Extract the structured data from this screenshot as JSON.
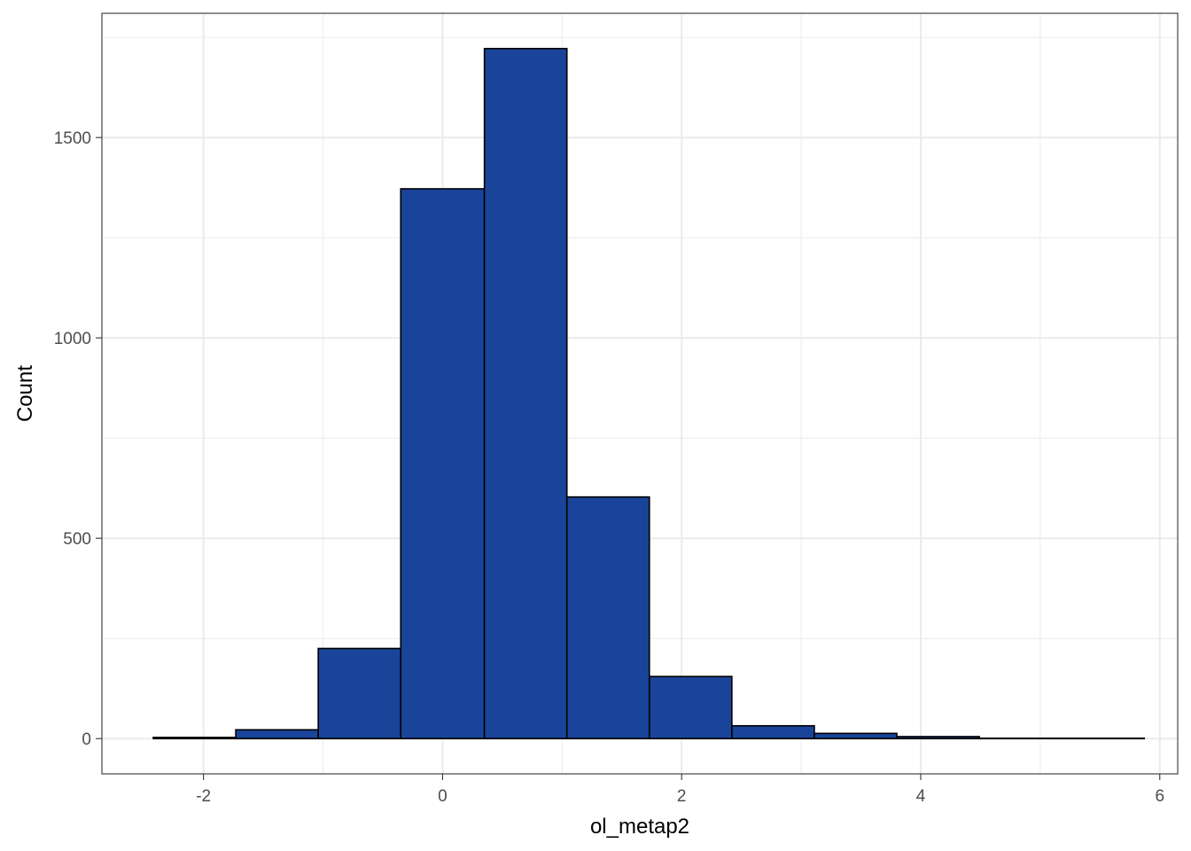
{
  "chart_data": {
    "type": "bar",
    "subtype": "histogram",
    "xlabel": "ol_metap2",
    "ylabel": "Count",
    "xlim": [
      -2.85,
      6.15
    ],
    "ylim": [
      -88,
      1810
    ],
    "x_ticks": [
      -2,
      0,
      2,
      4,
      6
    ],
    "x_tick_labels": [
      "-2",
      "0",
      "2",
      "4",
      "6"
    ],
    "x_minor_ticks": [
      -1,
      1,
      3,
      5
    ],
    "y_ticks": [
      0,
      500,
      1000,
      1500
    ],
    "y_tick_labels": [
      "0",
      "500",
      "1000",
      "1500"
    ],
    "y_minor_ticks": [
      250,
      750,
      1250,
      1750
    ],
    "grid": true,
    "bar_fill": "#1a4499",
    "bar_stroke": "#000000",
    "grid_color": "#ebebeb",
    "bins": [
      {
        "x0": -2.42,
        "x1": -1.73,
        "count": 3
      },
      {
        "x0": -1.73,
        "x1": -1.04,
        "count": 22
      },
      {
        "x0": -1.04,
        "x1": -0.35,
        "count": 225
      },
      {
        "x0": -0.35,
        "x1": 0.35,
        "count": 1372
      },
      {
        "x0": 0.35,
        "x1": 1.04,
        "count": 1722
      },
      {
        "x0": 1.04,
        "x1": 1.73,
        "count": 603
      },
      {
        "x0": 1.73,
        "x1": 2.42,
        "count": 155
      },
      {
        "x0": 2.42,
        "x1": 3.11,
        "count": 32
      },
      {
        "x0": 3.11,
        "x1": 3.8,
        "count": 13
      },
      {
        "x0": 3.8,
        "x1": 4.49,
        "count": 5
      },
      {
        "x0": 4.49,
        "x1": 5.18,
        "count": 1
      },
      {
        "x0": 5.18,
        "x1": 5.87,
        "count": 1
      }
    ]
  }
}
